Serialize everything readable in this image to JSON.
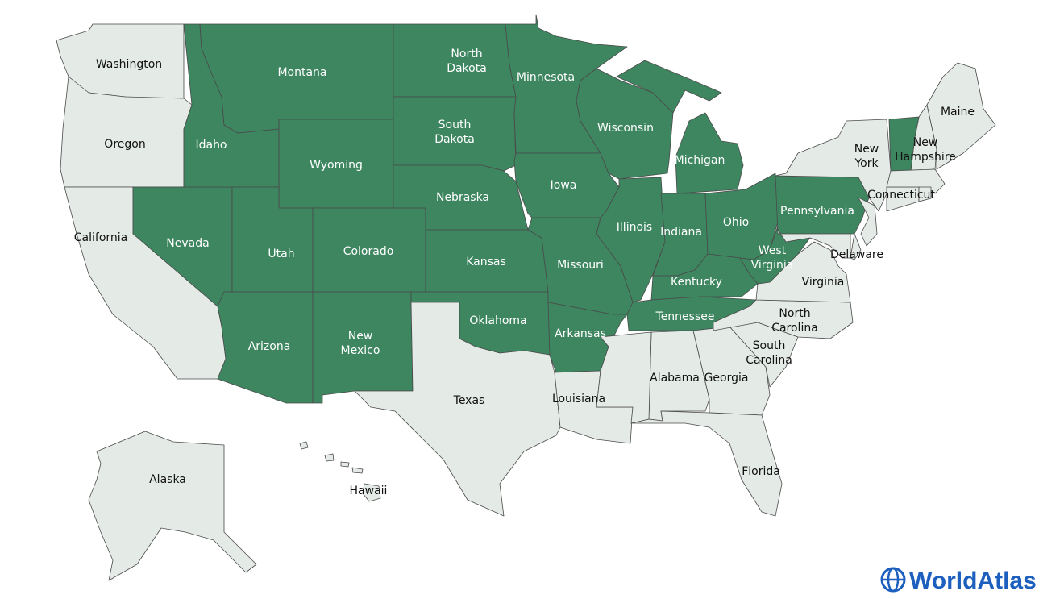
{
  "map": {
    "highlight_color": "#3d8660",
    "base_color": "#e4ebe6",
    "states": [
      {
        "label": [
          "Washington"
        ],
        "highlighted": false
      },
      {
        "label": [
          "Oregon"
        ],
        "highlighted": false
      },
      {
        "label": [
          "California"
        ],
        "highlighted": false
      },
      {
        "label": [
          "Nevada"
        ],
        "highlighted": true
      },
      {
        "label": [
          "Idaho"
        ],
        "highlighted": true
      },
      {
        "label": [
          "Montana"
        ],
        "highlighted": true
      },
      {
        "label": [
          "Wyoming"
        ],
        "highlighted": true
      },
      {
        "label": [
          "Utah"
        ],
        "highlighted": true
      },
      {
        "label": [
          "Colorado"
        ],
        "highlighted": true
      },
      {
        "label": [
          "Arizona"
        ],
        "highlighted": true
      },
      {
        "label": [
          "New",
          "Mexico"
        ],
        "highlighted": true
      },
      {
        "label": [
          "North",
          "Dakota"
        ],
        "highlighted": true
      },
      {
        "label": [
          "South",
          "Dakota"
        ],
        "highlighted": true
      },
      {
        "label": [
          "Nebraska"
        ],
        "highlighted": true
      },
      {
        "label": [
          "Kansas"
        ],
        "highlighted": true
      },
      {
        "label": [
          "Oklahoma"
        ],
        "highlighted": true
      },
      {
        "label": [
          "Texas"
        ],
        "highlighted": false
      },
      {
        "label": [
          "Minnesota"
        ],
        "highlighted": true
      },
      {
        "label": [
          "Iowa"
        ],
        "highlighted": true
      },
      {
        "label": [
          "Missouri"
        ],
        "highlighted": true
      },
      {
        "label": [
          "Arkansas"
        ],
        "highlighted": true
      },
      {
        "label": [
          "Louisiana"
        ],
        "highlighted": false
      },
      {
        "label": [
          "Wisconsin"
        ],
        "highlighted": true
      },
      {
        "label": [
          "Illinois"
        ],
        "highlighted": true
      },
      {
        "label": [
          "Michigan"
        ],
        "highlighted": true
      },
      {
        "label": [
          "Indiana"
        ],
        "highlighted": true
      },
      {
        "label": [
          "Ohio"
        ],
        "highlighted": true
      },
      {
        "label": [
          "Kentucky"
        ],
        "highlighted": true
      },
      {
        "label": [
          "Tennessee"
        ],
        "highlighted": true
      },
      {
        "label": [
          "Alabama"
        ],
        "highlighted": false
      },
      {
        "label": [
          "Georgia"
        ],
        "highlighted": false
      },
      {
        "label": [
          "Florida"
        ],
        "highlighted": false
      },
      {
        "label": [
          "South",
          "Carolina"
        ],
        "highlighted": false
      },
      {
        "label": [
          "North",
          "Carolina"
        ],
        "highlighted": false
      },
      {
        "label": [
          "Virginia"
        ],
        "highlighted": false
      },
      {
        "label": [
          "West",
          "Virginia"
        ],
        "highlighted": true
      },
      {
        "label": [
          "Pennsylvania"
        ],
        "highlighted": true
      },
      {
        "label": [
          "Delaware"
        ],
        "highlighted": false
      },
      {
        "label": [
          "New",
          "York"
        ],
        "highlighted": false
      },
      {
        "label": [
          "New",
          "Hampshire"
        ],
        "highlighted": false
      },
      {
        "label": [
          "Maine"
        ],
        "highlighted": false
      },
      {
        "label": [
          "Connecticut"
        ],
        "highlighted": false
      },
      {
        "label": [
          "Alaska"
        ],
        "highlighted": false
      },
      {
        "label": [
          "Hawaii"
        ],
        "highlighted": false
      },
      {
        "highlighted": false
      },
      {
        "highlighted": false
      },
      {
        "highlighted": false
      },
      {
        "highlighted": true
      },
      {
        "highlighted": false
      },
      {
        "highlighted": false
      }
    ],
    "logo": "WorldAtlas"
  }
}
